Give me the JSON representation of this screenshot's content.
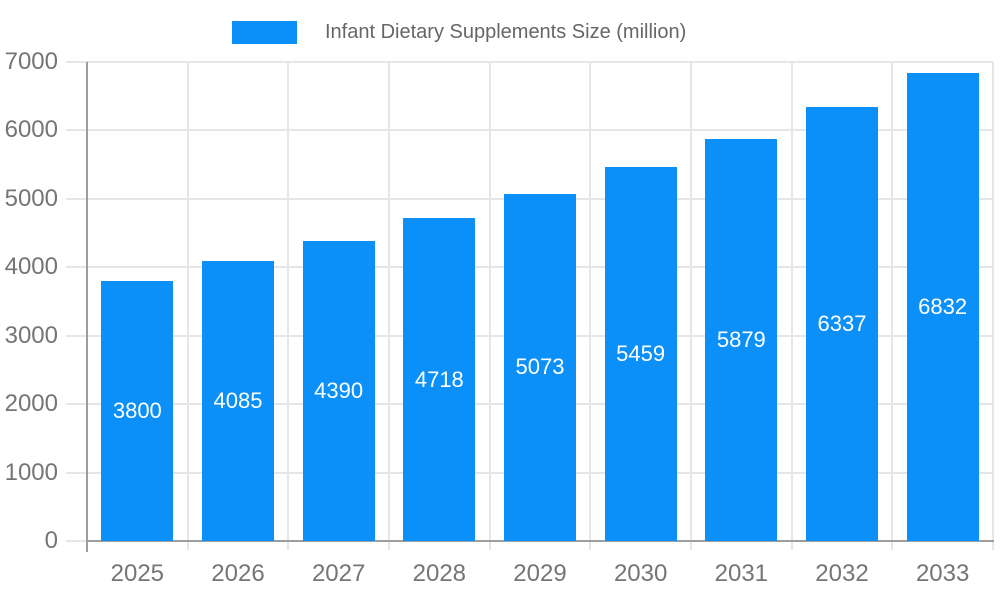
{
  "legend": {
    "label": "Infant Dietary Supplements Size (million)"
  },
  "chart_data": {
    "type": "bar",
    "title": "Infant Dietary Supplements Size (million)",
    "categories": [
      "2025",
      "2026",
      "2027",
      "2028",
      "2029",
      "2030",
      "2031",
      "2032",
      "2033"
    ],
    "values": [
      3800,
      4085,
      4390,
      4718,
      5073,
      5459,
      5879,
      6337,
      6832
    ],
    "xlabel": "",
    "ylabel": "",
    "ylim": [
      0,
      7000
    ],
    "y_ticks": [
      0,
      1000,
      2000,
      3000,
      4000,
      5000,
      6000,
      7000
    ],
    "grid": true,
    "legend_position": "top-center",
    "bar_value_labels": "inside-centered"
  },
  "colors": {
    "bar": "#0b90f9",
    "grid": "#e6e6e6",
    "axis": "#9e9e9e",
    "tick_label": "#757575",
    "legend_text": "#666666",
    "bar_label": "#ffffff",
    "background": "#ffffff"
  }
}
